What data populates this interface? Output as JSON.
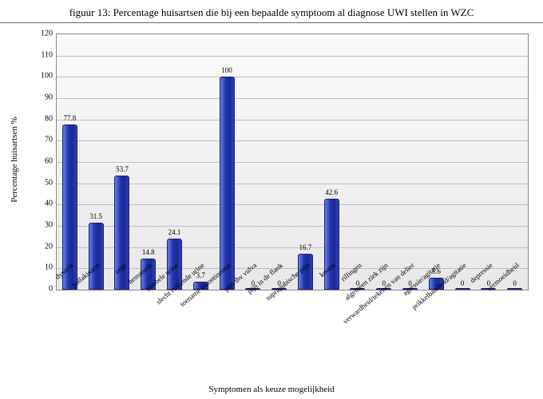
{
  "title": "figuur 13:  Percentage huisartsen die bij een bepaalde symptoom al diagnose UWI stellen in WZC",
  "ylabel": "Percentage huisartsen %",
  "xlabel": "Symptomen als keuze mogelijkheid",
  "ylim_max": 120,
  "ytick_step": 10,
  "bar_color_gradient": [
    "#6a7fe8",
    "#2232b0",
    "#1a2a90",
    "#3040c0"
  ],
  "bar_border_color": "#1a2070",
  "background_color": "#ffffff",
  "grid_color": "#c0c0c0",
  "title_fontsize": 13,
  "axis_label_fontsize": 11,
  "tick_fontsize": 10,
  "bar_label_fontsize": 9,
  "categories": [
    {
      "label": "dysurie",
      "value": 77.8
    },
    {
      "label": "pollakisurie",
      "value": 31.5
    },
    {
      "label": "urge",
      "value": 53.7
    },
    {
      "label": "hematurie",
      "value": 14.8
    },
    {
      "label": "troebele urine",
      "value": 24.1
    },
    {
      "label": "slecht ruikende urine",
      "value": 3.7
    },
    {
      "label": "toename incontinentie",
      "value": 100
    },
    {
      "label": "pijn thv vulva",
      "value": 0
    },
    {
      "label": "pijn in de flank",
      "value": 0
    },
    {
      "label": "suprapubische pijn",
      "value": 16.7
    },
    {
      "label": "koorts",
      "value": 42.6
    },
    {
      "label": "rillingen",
      "value": 0
    },
    {
      "label": "algemeen ziek zijn",
      "value": 0
    },
    {
      "label": "verwardheid/tekenen van delier",
      "value": 0
    },
    {
      "label": "agressie/agitatie",
      "value": 5.6
    },
    {
      "label": "prikkelbaarheid/agitatie",
      "value": 0
    },
    {
      "label": "depressie",
      "value": 0
    },
    {
      "label": "vermoeidheid",
      "value": 0
    }
  ]
}
